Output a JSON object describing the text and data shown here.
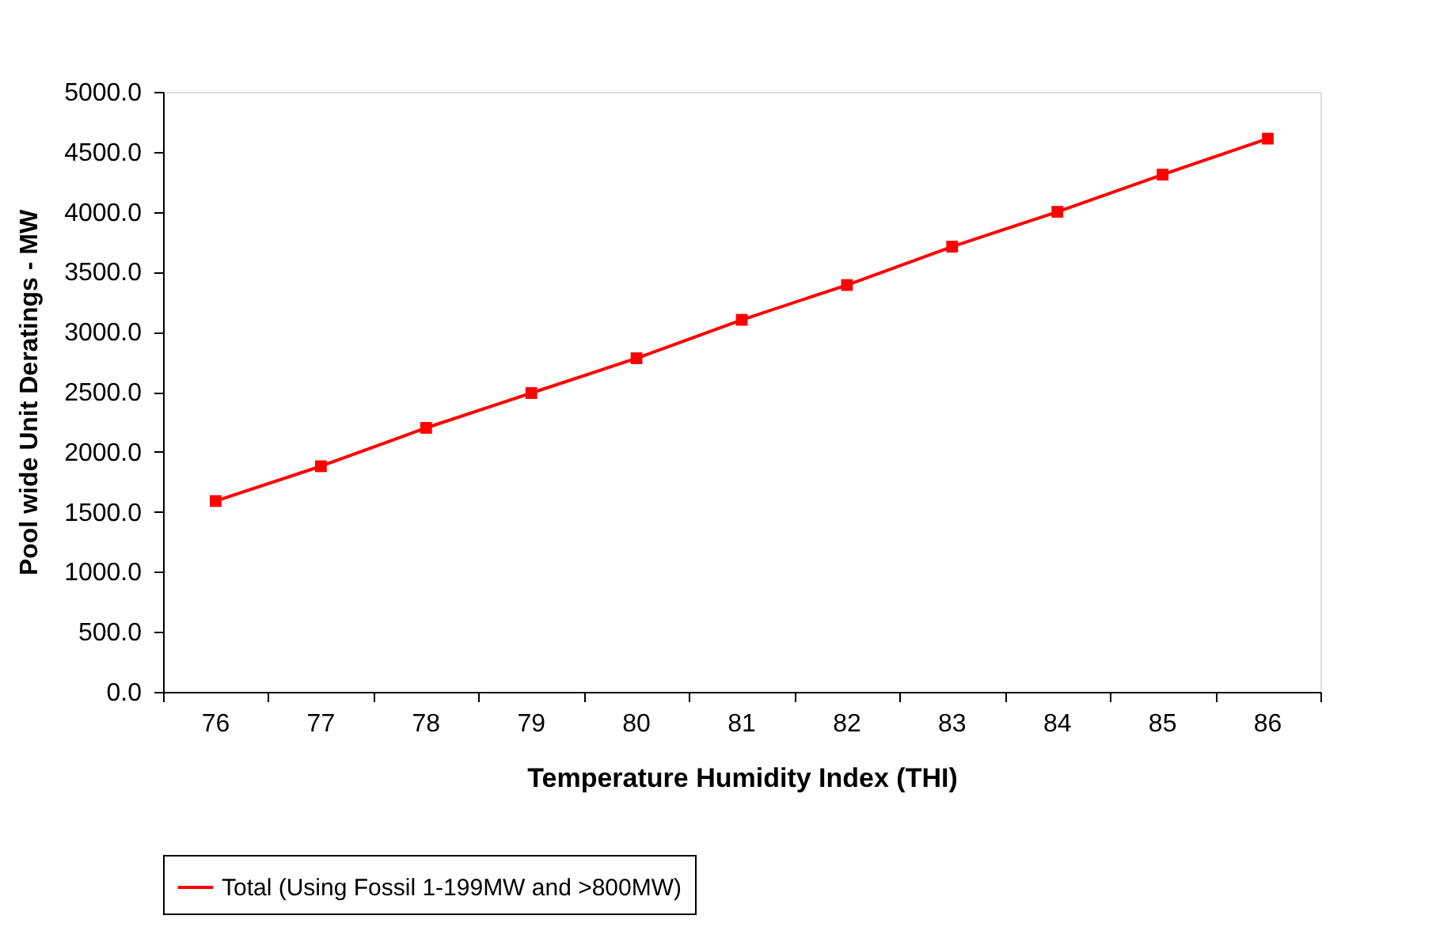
{
  "chart_data": {
    "type": "line",
    "xlabel": "Temperature Humidity Index (THI)",
    "ylabel": "Pool wide Unit Deratings -  MW",
    "categories": [
      "76",
      "77",
      "78",
      "79",
      "80",
      "81",
      "82",
      "83",
      "84",
      "85",
      "86"
    ],
    "series": [
      {
        "name": "Total (Using Fossil 1-199MW and >800MW)",
        "color": "#ff0000",
        "values": [
          1590,
          1880,
          2200,
          2490,
          2780,
          3100,
          3390,
          3710,
          4000,
          4310,
          4610
        ]
      }
    ],
    "ylim": [
      0,
      5000
    ],
    "yticks": [
      {
        "value": 0,
        "label": "0.0"
      },
      {
        "value": 500,
        "label": "500.0"
      },
      {
        "value": 1000,
        "label": "1000.0"
      },
      {
        "value": 1500,
        "label": "1500.0"
      },
      {
        "value": 2000,
        "label": "2000.0"
      },
      {
        "value": 2500,
        "label": "2500.0"
      },
      {
        "value": 3000,
        "label": "3000.0"
      },
      {
        "value": 3500,
        "label": "3500.0"
      },
      {
        "value": 4000,
        "label": "4000.0"
      },
      {
        "value": 4500,
        "label": "4500.0"
      },
      {
        "value": 5000,
        "label": "5000.0"
      }
    ],
    "marker": "square",
    "line_style": "solid",
    "grid": false,
    "legend": "bottom"
  }
}
